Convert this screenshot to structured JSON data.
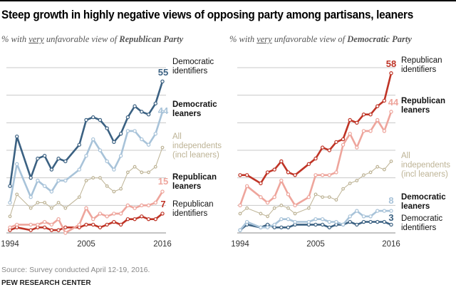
{
  "title": "Steep growth in highly negative views of opposing party among partisans, leaners",
  "footer": {
    "source": "Source: Survey conducted April 12-19, 2016.",
    "org": "PEW RESEARCH CENTER"
  },
  "colors": {
    "dem_identifiers": "#3b6182",
    "dem_leaners": "#a8c3d9",
    "independents": "#bdb395",
    "rep_leaners": "#eea59c",
    "rep_identifiers": "#bf3426",
    "grid": "#c8c8c8"
  },
  "chart_data": [
    {
      "type": "line",
      "subtitle": {
        "pre": "% with ",
        "underlined": "very",
        "mid": " unfavorable view of ",
        "bold": "Republican Party"
      },
      "ylim": [
        0,
        60
      ],
      "grid": true,
      "x_tick_labels": [
        "1994",
        "2005",
        "2016"
      ],
      "x": [
        1994,
        1995,
        1997,
        1998,
        1999,
        2000,
        2001,
        2002,
        2004,
        2005,
        2006,
        2007,
        2008,
        2009,
        2010,
        2011,
        2012,
        2013,
        2014,
        2015,
        2016
      ],
      "series": [
        {
          "name": "Democratic identifiers",
          "key": "dem_identifiers",
          "bold": false,
          "end_label": "55",
          "values": [
            17,
            35,
            20,
            27,
            28,
            23,
            27,
            26,
            32,
            41,
            42,
            41,
            38,
            33,
            36,
            42,
            46,
            44,
            43,
            47,
            55
          ]
        },
        {
          "name": "Democratic leaners",
          "key": "dem_leaners",
          "bold": true,
          "end_label": "44",
          "values": [
            11,
            25,
            13,
            19,
            17,
            15,
            19,
            19,
            23,
            28,
            34,
            30,
            26,
            23,
            28,
            37,
            37,
            34,
            32,
            36,
            44
          ]
        },
        {
          "name": "All independents (incl leaners)",
          "key": "independents",
          "bold": false,
          "end_label": "",
          "values": [
            6,
            14,
            9,
            11,
            11,
            9,
            11,
            9,
            13,
            19,
            20,
            20,
            17,
            15,
            16,
            22,
            24,
            22,
            22,
            24,
            31
          ]
        },
        {
          "name": "Republican leaners",
          "key": "rep_leaners",
          "bold": true,
          "end_label": "15",
          "values": [
            2,
            3,
            3,
            3,
            4,
            3,
            5,
            0,
            3,
            9,
            5,
            7,
            6,
            7,
            7,
            10,
            9,
            10,
            10,
            11,
            15
          ]
        },
        {
          "name": "Republican identifiers",
          "key": "rep_identifiers",
          "bold": false,
          "end_label": "7",
          "values": [
            1,
            2,
            1,
            2,
            2,
            1,
            1,
            2,
            2,
            3,
            3,
            2,
            3,
            4,
            3,
            5,
            5,
            6,
            5,
            5,
            7
          ]
        }
      ]
    },
    {
      "type": "line",
      "subtitle": {
        "pre": "% with ",
        "underlined": "very",
        "mid": " unfavorable view of ",
        "bold": "Democratic Party"
      },
      "ylim": [
        0,
        60
      ],
      "grid": true,
      "x_tick_labels": [
        "1994",
        "2005",
        "2016"
      ],
      "x": [
        1994,
        1995,
        1997,
        1998,
        1999,
        2000,
        2001,
        2002,
        2004,
        2005,
        2006,
        2007,
        2008,
        2009,
        2010,
        2011,
        2012,
        2013,
        2014,
        2015,
        2016
      ],
      "series": [
        {
          "name": "Republican identifiers",
          "key": "rep_identifiers",
          "bold": false,
          "end_label": "58",
          "values": [
            21,
            21,
            18,
            22,
            23,
            26,
            22,
            21,
            25,
            27,
            31,
            30,
            33,
            34,
            41,
            40,
            43,
            43,
            46,
            48,
            58
          ]
        },
        {
          "name": "Republican leaners",
          "key": "rep_leaners",
          "bold": true,
          "end_label": "44",
          "values": [
            10,
            17,
            13,
            11,
            13,
            19,
            14,
            10,
            13,
            21,
            21,
            21,
            22,
            32,
            36,
            31,
            37,
            37,
            41,
            37,
            44
          ]
        },
        {
          "name": "All independents (incl leaners)",
          "key": "independents",
          "bold": false,
          "end_label": "",
          "values": [
            7,
            9,
            7,
            6,
            9,
            10,
            9,
            7,
            9,
            14,
            13,
            13,
            12,
            16,
            18,
            19,
            21,
            22,
            24,
            23,
            26
          ]
        },
        {
          "name": "Democratic leaners",
          "key": "dem_leaners",
          "bold": true,
          "end_label": "8",
          "values": [
            1,
            4,
            2,
            2,
            3,
            5,
            5,
            4,
            4,
            5,
            5,
            4,
            4,
            3,
            6,
            8,
            6,
            6,
            8,
            8,
            8
          ]
        },
        {
          "name": "Democratic identifiers",
          "key": "dem_identifiers",
          "bold": false,
          "end_label": "3",
          "values": [
            1,
            3,
            2,
            3,
            2,
            2,
            2,
            3,
            3,
            3,
            3,
            2,
            3,
            3,
            4,
            3,
            4,
            4,
            4,
            4,
            3
          ]
        }
      ]
    }
  ]
}
